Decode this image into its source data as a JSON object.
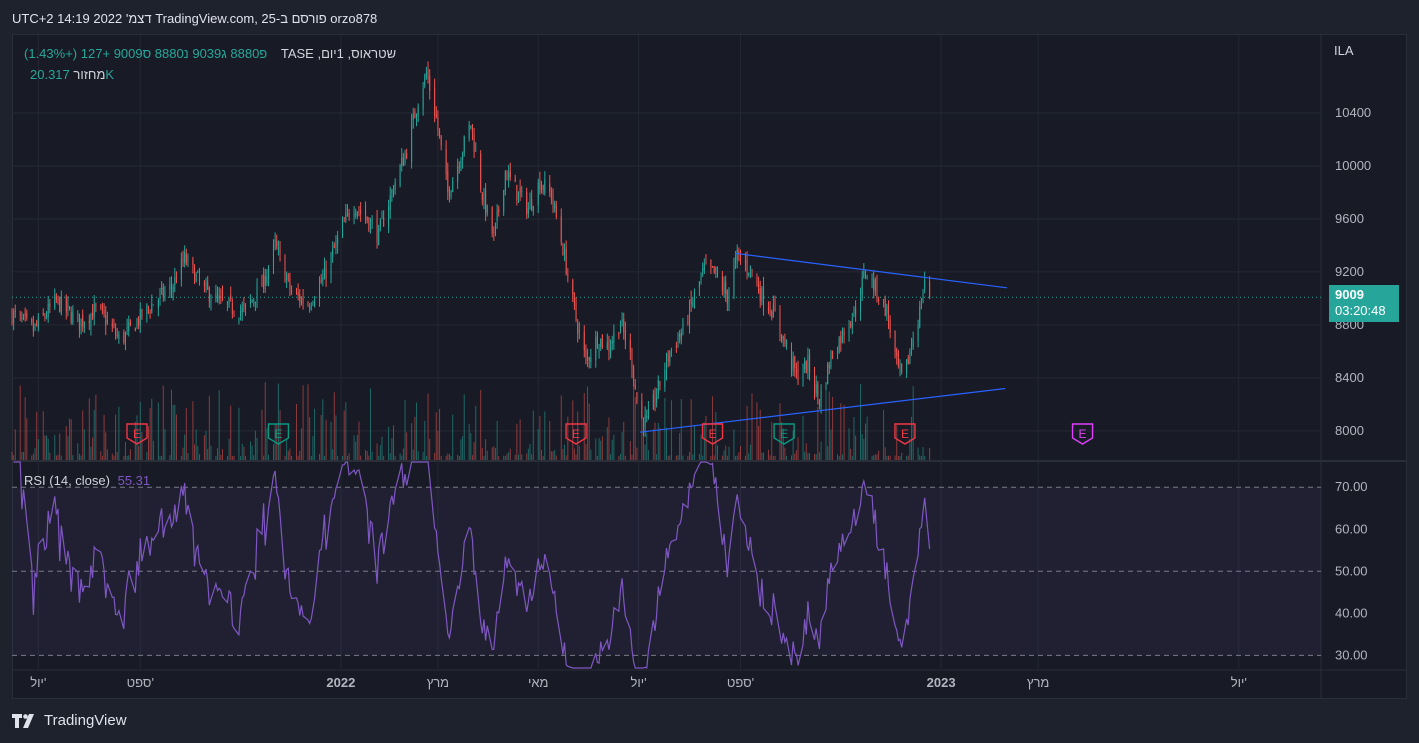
{
  "title": "orzo878 פורסם ב-TradingView.com, 25 דצמ' 2022 14:19 UTC+2",
  "legend": {
    "symbol": "שטראוס, 1יום, TASE",
    "values": "פ8880 ג9039 נ8880 ס9009 +127 (+1.43%)"
  },
  "volume": {
    "label": "מחזור",
    "value": "20.317K"
  },
  "rsi": {
    "label": "RSI (14, close)",
    "value": "55.31"
  },
  "currency": "ILA",
  "last_price": {
    "price": "9009",
    "countdown": "03:20:48"
  },
  "watermark": "TradingView",
  "colors": {
    "up": "#26a69a",
    "down": "#ef5350",
    "rsi_line": "#7e57c2",
    "trendline": "#2962ff",
    "earnings_red": "#f23645",
    "earnings_green": "#089981",
    "earnings_future": "#e040fb"
  },
  "chart_data": [
    {
      "type": "candlestick",
      "series_name": "שטראוס",
      "interval": "1D",
      "x_tick_labels": [
        "יול'",
        "ספט'",
        "2022",
        "מרץ",
        "מאי",
        "יול'",
        "ספט'",
        "2023",
        "מרץ",
        "יול'"
      ],
      "x_tick_dates": [
        "2021-07-01",
        "2021-09-01",
        "2022-01-01",
        "2022-03-01",
        "2022-05-01",
        "2022-07-01",
        "2022-09-01",
        "2023-01-01",
        "2023-03-01",
        "2023-07-01"
      ],
      "x_range": [
        "2021-06-15",
        "2023-08-20"
      ],
      "y_ticks": [
        8000,
        8400,
        8800,
        9200,
        9600,
        10000,
        10400
      ],
      "y_tick_labels": [
        "8000",
        "8400",
        "8800",
        "9200",
        "9600",
        "10000",
        "10400"
      ],
      "ylim": [
        7780,
        10800
      ],
      "last_value": 9009,
      "price_path": [
        [
          "2021-06-15",
          8880
        ],
        [
          "2021-06-28",
          8760
        ],
        [
          "2021-07-12",
          8980
        ],
        [
          "2021-07-26",
          8820
        ],
        [
          "2021-08-06",
          8920
        ],
        [
          "2021-08-20",
          8680
        ],
        [
          "2021-08-31",
          8840
        ],
        [
          "2021-09-10",
          8980
        ],
        [
          "2021-09-20",
          9080
        ],
        [
          "2021-09-28",
          9300
        ],
        [
          "2021-10-10",
          9060
        ],
        [
          "2021-10-22",
          8950
        ],
        [
          "2021-11-03",
          8900
        ],
        [
          "2021-11-15",
          9120
        ],
        [
          "2021-11-22",
          9400
        ],
        [
          "2021-12-02",
          9040
        ],
        [
          "2021-12-12",
          8960
        ],
        [
          "2021-12-21",
          9140
        ],
        [
          "2022-01-01",
          9500
        ],
        [
          "2022-01-08",
          9720
        ],
        [
          "2022-01-17",
          9600
        ],
        [
          "2022-01-24",
          9480
        ],
        [
          "2022-02-03",
          9880
        ],
        [
          "2022-02-10",
          10120
        ],
        [
          "2022-02-17",
          10500
        ],
        [
          "2022-02-22",
          10700
        ],
        [
          "2022-02-28",
          10360
        ],
        [
          "2022-03-07",
          9800
        ],
        [
          "2022-03-14",
          10050
        ],
        [
          "2022-03-21",
          10320
        ],
        [
          "2022-03-28",
          9780
        ],
        [
          "2022-04-04",
          9450
        ],
        [
          "2022-04-11",
          9960
        ],
        [
          "2022-04-18",
          9800
        ],
        [
          "2022-04-25",
          9680
        ],
        [
          "2022-05-02",
          9880
        ],
        [
          "2022-05-09",
          9780
        ],
        [
          "2022-05-16",
          9380
        ],
        [
          "2022-05-23",
          8900
        ],
        [
          "2022-05-30",
          8520
        ],
        [
          "2022-06-06",
          8700
        ],
        [
          "2022-06-13",
          8640
        ],
        [
          "2022-06-20",
          8820
        ],
        [
          "2022-06-27",
          8520
        ],
        [
          "2022-07-01",
          8120
        ],
        [
          "2022-07-06",
          8060
        ],
        [
          "2022-07-13",
          8320
        ],
        [
          "2022-07-20",
          8600
        ],
        [
          "2022-07-28",
          8760
        ],
        [
          "2022-08-03",
          8980
        ],
        [
          "2022-08-10",
          9220
        ],
        [
          "2022-08-17",
          9180
        ],
        [
          "2022-08-24",
          9010
        ],
        [
          "2022-08-30",
          9320
        ],
        [
          "2022-09-07",
          9220
        ],
        [
          "2022-09-14",
          9020
        ],
        [
          "2022-09-21",
          8900
        ],
        [
          "2022-09-28",
          8660
        ],
        [
          "2022-10-05",
          8420
        ],
        [
          "2022-10-12",
          8500
        ],
        [
          "2022-10-19",
          8230
        ],
        [
          "2022-10-26",
          8560
        ],
        [
          "2022-11-03",
          8760
        ],
        [
          "2022-11-10",
          8920
        ],
        [
          "2022-11-16",
          9210
        ],
        [
          "2022-11-22",
          9080
        ],
        [
          "2022-11-29",
          8900
        ],
        [
          "2022-12-05",
          8500
        ],
        [
          "2022-12-09",
          8360
        ],
        [
          "2022-12-14",
          8660
        ],
        [
          "2022-12-19",
          8900
        ],
        [
          "2022-12-22",
          9140
        ],
        [
          "2022-12-25",
          9009
        ]
      ],
      "trendlines": [
        {
          "from": [
            "2022-08-29",
            9340
          ],
          "to": [
            "2023-02-10",
            9080
          ]
        },
        {
          "from": [
            "2022-07-02",
            7990
          ],
          "to": [
            "2023-02-09",
            8320
          ]
        }
      ],
      "earnings_markers": [
        {
          "date": "2021-08-30",
          "color": "#f23645"
        },
        {
          "date": "2021-11-24",
          "color": "#089981"
        },
        {
          "date": "2022-05-24",
          "color": "#f23645"
        },
        {
          "date": "2022-08-15",
          "color": "#f23645"
        },
        {
          "date": "2022-08-15",
          "color": "#089981",
          "offset_days": 80
        },
        {
          "date": "2022-12-10",
          "color": "#f23645"
        },
        {
          "date": "2023-03-28",
          "color": "#e040fb"
        }
      ]
    },
    {
      "type": "line",
      "series_name": "RSI (14, close)",
      "y_ticks": [
        30,
        40,
        50,
        60,
        70
      ],
      "y_tick_labels": [
        "30.00",
        "40.00",
        "50.00",
        "60.00",
        "70.00"
      ],
      "ylim": [
        27,
        76
      ],
      "bands": {
        "upper": 70,
        "middle": 50,
        "lower": 30
      },
      "last_value": 55.31
    }
  ]
}
